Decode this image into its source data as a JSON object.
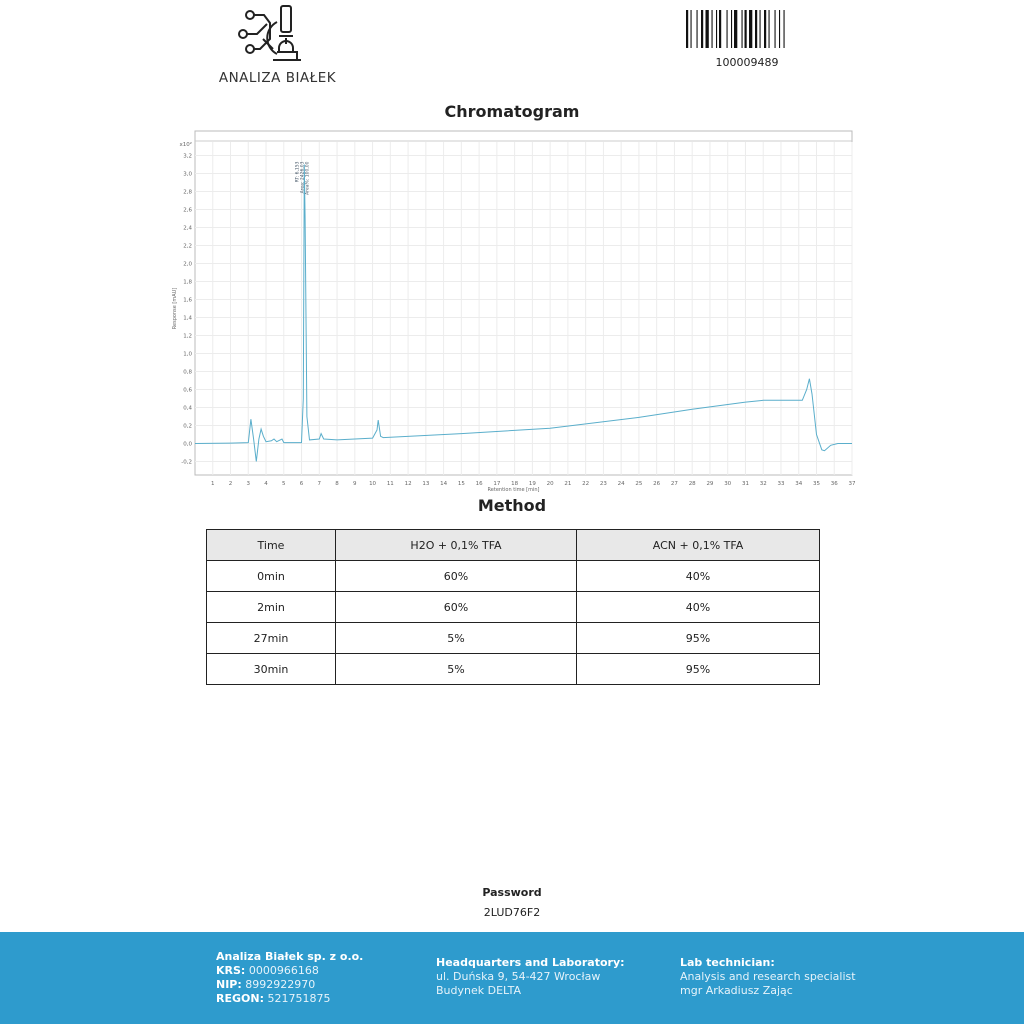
{
  "header": {
    "logo_text": "ANALIZA BIAŁEK",
    "barcode_number": "100009489"
  },
  "chart_title": "Chromatogram",
  "chart_data": {
    "type": "line",
    "xlabel": "Retention time [min]",
    "ylabel": "Response [mAU]",
    "y_multiplier": "x10²",
    "xlim": [
      0,
      37
    ],
    "ylim": [
      -0.35,
      3.35
    ],
    "x_ticks": [
      1,
      2,
      3,
      4,
      5,
      6,
      7,
      8,
      9,
      10,
      11,
      12,
      13,
      14,
      15,
      16,
      17,
      18,
      19,
      20,
      21,
      22,
      23,
      24,
      25,
      26,
      27,
      28,
      29,
      30,
      31,
      32,
      33,
      34,
      35,
      36,
      37
    ],
    "y_ticks": [
      "-0,2",
      "0,0",
      "0,2",
      "0,4",
      "0,6",
      "0,8",
      "1,0",
      "1,2",
      "1,4",
      "1,6",
      "1,8",
      "2,0",
      "2,2",
      "2,4",
      "2,6",
      "2,8",
      "3,0",
      "3,2"
    ],
    "grid": true,
    "color": "#5aaecb",
    "peak_annotation": {
      "rt": "RT: 6,153",
      "area": "Area: 2426,03",
      "area_pct": "Area%: 100,00"
    },
    "series": [
      {
        "x": [
          0,
          2,
          3.0,
          3.15,
          3.3,
          3.45,
          3.6,
          3.72,
          3.85,
          4.0,
          4.3,
          4.45,
          4.6,
          4.9,
          5.0,
          6.0,
          6.1,
          6.153,
          6.2,
          6.3,
          6.45,
          7.0,
          7.1,
          7.25,
          8,
          10,
          10.25,
          10.32,
          10.45,
          10.6,
          15,
          20,
          25,
          28,
          31,
          32,
          34.2,
          34.45,
          34.6,
          34.75,
          35.0,
          35.3,
          35.45,
          35.8,
          36.2,
          37
        ],
        "y": [
          0,
          0.005,
          0.01,
          0.27,
          0.05,
          -0.2,
          0.05,
          0.16,
          0.08,
          0.02,
          0.03,
          0.05,
          0.02,
          0.05,
          0.01,
          0.01,
          0.5,
          3.1,
          2.5,
          0.3,
          0.04,
          0.05,
          0.11,
          0.05,
          0.04,
          0.06,
          0.15,
          0.26,
          0.08,
          0.065,
          0.11,
          0.17,
          0.29,
          0.38,
          0.46,
          0.48,
          0.48,
          0.6,
          0.72,
          0.55,
          0.1,
          -0.07,
          -0.08,
          -0.02,
          0.0,
          0.0
        ]
      }
    ]
  },
  "method": {
    "title": "Method",
    "headers": [
      "Time",
      "H2O + 0,1% TFA",
      "ACN + 0,1% TFA"
    ],
    "rows": [
      [
        "0min",
        "60%",
        "40%"
      ],
      [
        "2min",
        "60%",
        "40%"
      ],
      [
        "27min",
        "5%",
        "95%"
      ],
      [
        "30min",
        "5%",
        "95%"
      ]
    ]
  },
  "password": {
    "label": "Password",
    "value": "2LUD76F2"
  },
  "footer": {
    "company": "Analiza Białek sp. z o.o.",
    "krs_label": "KRS:",
    "krs": "0000966168",
    "nip_label": "NIP:",
    "nip": "8992922970",
    "regon_label": "REGON:",
    "regon": "521751875",
    "hq_title": "Headquarters and Laboratory:",
    "hq_line1": "ul. Duńska 9, 54-427 Wrocław",
    "hq_line2": "Budynek DELTA",
    "tech_title": "Lab technician:",
    "tech_line1": "Analysis and research specialist",
    "tech_line2": "mgr Arkadiusz Zając"
  }
}
